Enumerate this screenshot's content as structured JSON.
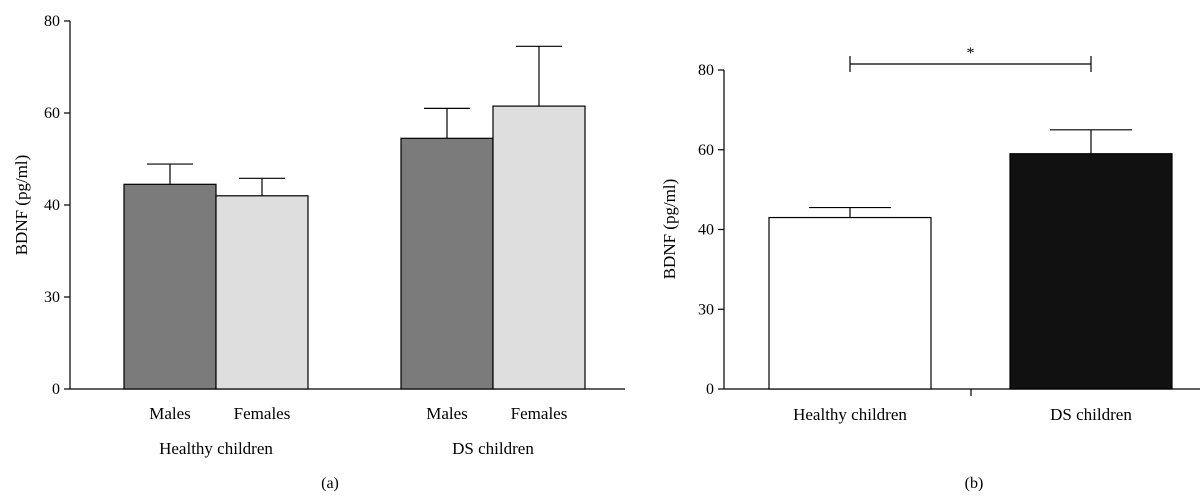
{
  "chart_data": [
    {
      "type": "bar",
      "panel_label": "(a)",
      "ylabel": "BDNF (pg/ml)",
      "y_ticks": [
        0,
        30,
        40,
        60,
        80
      ],
      "ylim": [
        0,
        80
      ],
      "groups": [
        {
          "label": "Healthy children",
          "bars": [
            {
              "label": "Males",
              "value": 44.5,
              "error": 4.4,
              "color": "#7b7b7b"
            },
            {
              "label": "Females",
              "value": 42.0,
              "error": 3.8,
              "color": "#dedede"
            }
          ]
        },
        {
          "label": "DS children",
          "bars": [
            {
              "label": "Males",
              "value": 54.5,
              "error": 6.5,
              "color": "#7b7b7b"
            },
            {
              "label": "Females",
              "value": 61.5,
              "error": 13.0,
              "color": "#dedede"
            }
          ]
        }
      ],
      "grid": false
    },
    {
      "type": "bar",
      "panel_label": "(b)",
      "ylabel": "BDNF (pg/ml)",
      "y_ticks": [
        0,
        30,
        40,
        60,
        80
      ],
      "ylim": [
        0,
        80
      ],
      "categories": [
        "Healthy children",
        "DS children"
      ],
      "values": [
        43.0,
        59.0
      ],
      "errors": [
        2.5,
        6.0
      ],
      "colors": [
        "#ffffff",
        "#111111"
      ],
      "significance": {
        "label": "*",
        "between": [
          "Healthy children",
          "DS children"
        ],
        "level": 81.5
      },
      "grid": false
    }
  ]
}
